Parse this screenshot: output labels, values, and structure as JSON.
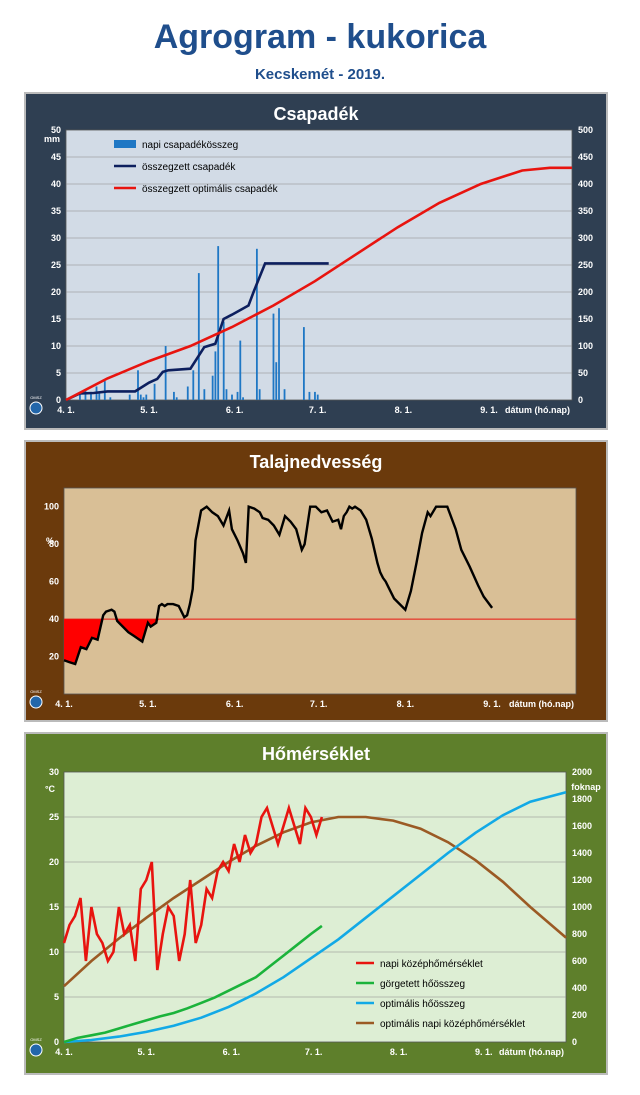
{
  "header": {
    "title": "Agrogram - kukorica",
    "subtitle": "Kecskemét - 2019."
  },
  "x_axis": {
    "ticks": [
      "4. 1.",
      "5. 1.",
      "6. 1.",
      "7. 1.",
      "8. 1.",
      "9. 1."
    ],
    "label": "dátum (hó.nap)"
  },
  "logo_text": "OMSZ",
  "colors": {
    "precip_panel": "#2f3f52",
    "precip_plot": "#d2dbe6",
    "soil_panel": "#6b3a0c",
    "soil_plot": "#d9bf96",
    "temp_panel": "#5e7f2b",
    "temp_plot": "#ddeed4"
  },
  "chart_data": [
    {
      "id": "precipitation",
      "type": "bar",
      "title": "Csapadék",
      "ylabel": "mm",
      "ylim": [
        0,
        50
      ],
      "y_ticks": [
        0,
        5,
        10,
        15,
        20,
        25,
        30,
        35,
        40,
        45,
        50
      ],
      "y2lim": [
        0,
        500
      ],
      "y2_ticks": [
        0,
        50,
        100,
        150,
        200,
        250,
        300,
        350,
        400,
        450,
        500
      ],
      "xlim_days": [
        0,
        183
      ],
      "series": [
        {
          "name": "napi csapadékösszeg",
          "type": "bar",
          "color": "#1f77c4",
          "x_days": [
            5,
            7,
            9,
            11,
            12,
            14,
            16,
            23,
            26,
            27,
            28,
            29,
            32,
            36,
            39,
            40,
            44,
            46,
            48,
            50,
            53,
            54,
            55,
            57,
            58,
            60,
            62,
            63,
            64,
            69,
            70,
            75,
            76,
            77,
            79,
            86,
            88,
            90,
            91
          ],
          "values": [
            1.0,
            2.0,
            1.5,
            2.5,
            1.5,
            3.5,
            0.5,
            1.0,
            5.5,
            1.0,
            0.5,
            1.0,
            3.0,
            10.0,
            1.5,
            0.5,
            2.5,
            5.5,
            23.5,
            2.0,
            4.5,
            9.0,
            28.5,
            14.5,
            2.0,
            1.0,
            1.5,
            11.0,
            0.5,
            28.0,
            2.0,
            16.0,
            7.0,
            17.0,
            2.0,
            13.5,
            1.5,
            1.5,
            1.0
          ]
        },
        {
          "name": "összegzett csapadék",
          "type": "line",
          "axis": "right",
          "color": "#0d1f5e",
          "x_days": [
            0,
            5,
            10,
            15,
            20,
            25,
            30,
            33,
            35,
            37,
            45,
            50,
            54,
            57,
            60,
            66,
            68,
            72,
            75,
            78,
            85,
            88,
            91,
            95
          ],
          "values": [
            0,
            12,
            13,
            16,
            16,
            16,
            32,
            39,
            52,
            55,
            58,
            98,
            104,
            150,
            158,
            175,
            202,
            253,
            253,
            253,
            253,
            253,
            253,
            253
          ]
        },
        {
          "name": "összegzett optimális csapadék",
          "type": "line",
          "axis": "right",
          "color": "#e8140f",
          "x_days": [
            0,
            15,
            30,
            45,
            60,
            75,
            90,
            105,
            120,
            135,
            150,
            165,
            175,
            183
          ],
          "values": [
            0,
            40,
            72,
            100,
            135,
            175,
            220,
            270,
            320,
            365,
            400,
            425,
            430,
            430
          ]
        }
      ]
    },
    {
      "id": "soil_moisture",
      "type": "line",
      "title": "Talajnedvesség",
      "ylabel": "%",
      "ylim": [
        0,
        110
      ],
      "y_ticks": [
        20,
        40,
        60,
        80,
        100
      ],
      "threshold": 40,
      "xlim_days": [
        0,
        183
      ],
      "series": [
        {
          "name": "",
          "color": "#000000",
          "x_days": [
            0,
            2,
            4,
            6,
            8,
            10,
            12,
            14,
            15,
            17,
            18,
            19,
            21,
            23,
            25,
            27,
            28,
            30,
            31,
            33,
            34,
            35,
            36,
            37,
            39,
            41,
            43,
            44,
            45,
            46,
            47,
            49,
            51,
            53,
            55,
            57,
            59,
            60,
            62,
            64,
            65,
            66,
            68,
            70,
            71,
            73,
            75,
            77,
            79,
            81,
            83,
            85,
            86,
            88,
            90,
            92,
            94,
            96,
            98,
            99,
            100,
            101,
            102,
            103,
            104,
            106,
            108,
            110,
            112,
            113,
            114,
            115,
            116,
            118,
            120,
            122,
            124,
            126,
            128,
            130,
            131,
            133,
            135,
            137,
            138,
            140,
            142,
            145,
            148,
            150,
            153
          ],
          "values": [
            18,
            17,
            16,
            25,
            24,
            30,
            29,
            42,
            44,
            45,
            44,
            39,
            36,
            33,
            31,
            29,
            28,
            38,
            36,
            38,
            47,
            48,
            47,
            48,
            48,
            47,
            41,
            42,
            48,
            56,
            82,
            98,
            100,
            97,
            95,
            90,
            98,
            88,
            82,
            75,
            70,
            100,
            99,
            97,
            94,
            93,
            90,
            85,
            95,
            92,
            88,
            77,
            80,
            100,
            100,
            97,
            98,
            92,
            93,
            88,
            95,
            97,
            100,
            99,
            100,
            98,
            93,
            83,
            70,
            65,
            62,
            60,
            57,
            51,
            48,
            45,
            55,
            70,
            86,
            97,
            95,
            100,
            100,
            100,
            96,
            88,
            77,
            68,
            58,
            52,
            46
          ]
        }
      ]
    },
    {
      "id": "temperature",
      "type": "line",
      "title": "Hőmérséklet",
      "ylabel": "°C",
      "ylim": [
        0,
        30
      ],
      "y_ticks": [
        0,
        5,
        10,
        15,
        20,
        25,
        30
      ],
      "y2label": "foknap",
      "y2lim": [
        0,
        2000
      ],
      "y2_ticks": [
        0,
        200,
        400,
        600,
        800,
        1000,
        1200,
        1400,
        1600,
        1800,
        2000
      ],
      "xlim_days": [
        0,
        183
      ],
      "series": [
        {
          "name": "napi középhőmérséklet",
          "axis": "left",
          "color": "#e8140f",
          "x_days": [
            0,
            2,
            4,
            6,
            8,
            10,
            12,
            14,
            16,
            18,
            20,
            22,
            24,
            26,
            28,
            30,
            32,
            34,
            36,
            38,
            40,
            42,
            44,
            46,
            48,
            50,
            52,
            54,
            56,
            58,
            60,
            62,
            64,
            66,
            68,
            70,
            72,
            74,
            76,
            78,
            80,
            82,
            84,
            86,
            88,
            90,
            92,
            94
          ],
          "values": [
            11,
            13,
            14,
            16,
            9,
            15,
            12,
            11,
            9,
            10,
            15,
            12,
            13,
            9,
            17,
            18,
            20,
            8,
            12,
            15,
            14,
            9,
            12,
            18,
            11,
            13,
            17,
            16,
            19,
            20,
            19,
            22,
            20,
            23,
            21,
            22,
            25,
            26,
            24,
            22,
            24,
            26,
            24,
            22,
            26,
            25,
            23,
            25
          ]
        },
        {
          "name": "görgetett hőösszeg",
          "axis": "right",
          "color": "#1bb33b",
          "x_days": [
            0,
            5,
            10,
            15,
            20,
            25,
            30,
            35,
            40,
            45,
            50,
            55,
            60,
            65,
            70,
            75,
            80,
            85,
            90,
            94
          ],
          "values": [
            0,
            30,
            50,
            70,
            100,
            130,
            160,
            190,
            215,
            250,
            290,
            330,
            380,
            430,
            480,
            560,
            640,
            720,
            800,
            860
          ]
        },
        {
          "name": "optimális hőösszeg",
          "axis": "right",
          "color": "#12a9e6",
          "x_days": [
            0,
            10,
            20,
            30,
            40,
            50,
            60,
            70,
            80,
            90,
            100,
            110,
            120,
            130,
            140,
            150,
            160,
            170,
            183
          ],
          "values": [
            0,
            15,
            40,
            75,
            120,
            180,
            260,
            360,
            480,
            620,
            760,
            920,
            1080,
            1240,
            1400,
            1550,
            1680,
            1780,
            1850
          ]
        },
        {
          "name": "optimális napi középhőmérséklet",
          "axis": "left",
          "color": "#9b5a24",
          "x_days": [
            0,
            10,
            20,
            30,
            40,
            50,
            60,
            70,
            80,
            90,
            100,
            110,
            120,
            130,
            140,
            150,
            160,
            170,
            183
          ],
          "values": [
            6.2,
            9.0,
            11.5,
            13.8,
            16.0,
            18.0,
            20.0,
            21.8,
            23.3,
            24.4,
            25.0,
            25.0,
            24.6,
            23.7,
            22.2,
            20.2,
            17.8,
            15.0,
            11.6
          ]
        }
      ]
    }
  ]
}
